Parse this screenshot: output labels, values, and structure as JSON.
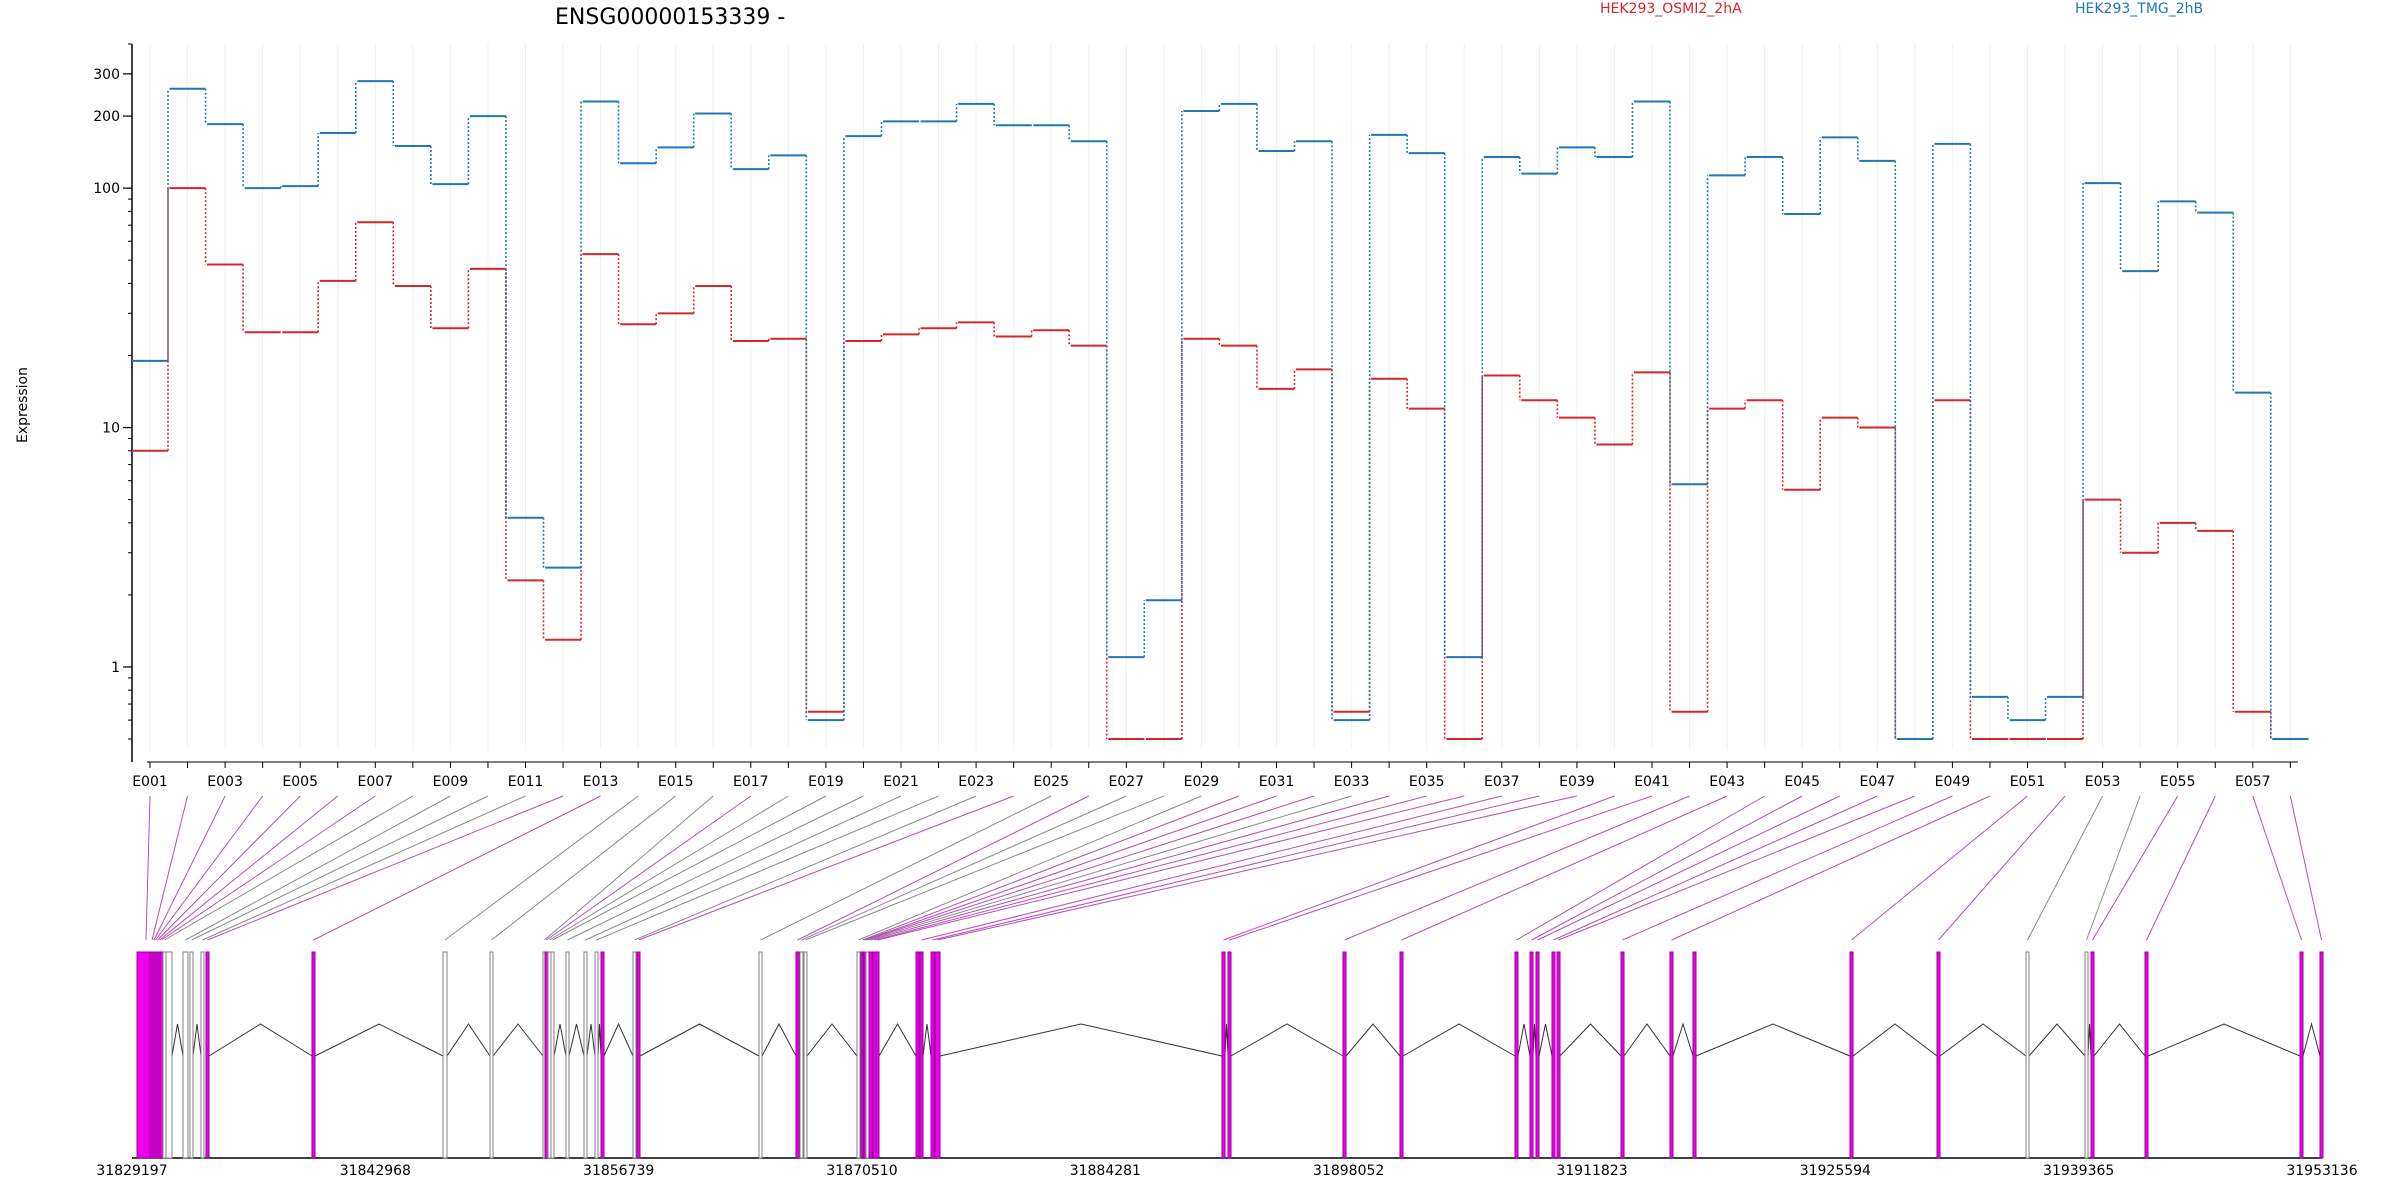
{
  "chart_data": {
    "type": "line",
    "title": "ENSG00000153339 -",
    "ylabel": "Expression",
    "yscale": "log",
    "ylim": [
      0.45,
      400
    ],
    "yticks": [
      1,
      10,
      100,
      200,
      300
    ],
    "categories": [
      "E001",
      "E002",
      "E003",
      "E004",
      "E005",
      "E006",
      "E007",
      "E008",
      "E009",
      "E010",
      "E011",
      "E012",
      "E013",
      "E014",
      "E015",
      "E016",
      "E017",
      "E018",
      "E019",
      "E020",
      "E021",
      "E022",
      "E023",
      "E024",
      "E025",
      "E026",
      "E027",
      "E028",
      "E029",
      "E030",
      "E031",
      "E032",
      "E033",
      "E034",
      "E035",
      "E036",
      "E037",
      "E038",
      "E039",
      "E040",
      "E041",
      "E042",
      "E043",
      "E044",
      "E045",
      "E046",
      "E047",
      "E048",
      "E049",
      "E050",
      "E051",
      "E052",
      "E053",
      "E054",
      "E055",
      "E056",
      "E057",
      "E058"
    ],
    "category_labels": [
      "E001",
      "E003",
      "E005",
      "E007",
      "E009",
      "E011",
      "E013",
      "E015",
      "E017",
      "E019",
      "E021",
      "E023",
      "E025",
      "E027",
      "E029",
      "E031",
      "E033",
      "E035",
      "E037",
      "E039",
      "E041",
      "E043",
      "E045",
      "E047",
      "E049",
      "E051",
      "E053",
      "E055",
      "E057"
    ],
    "series": [
      {
        "name": "HEK293_OSMI2_2hA",
        "color": "#d62728",
        "values": [
          8,
          100,
          48,
          25,
          25,
          41,
          72,
          39,
          26,
          46,
          2.3,
          1.3,
          53,
          27,
          30,
          39,
          23,
          23.5,
          0.65,
          23,
          24.5,
          26,
          27.5,
          24,
          25.5,
          22,
          0.5,
          0.5,
          23.5,
          22,
          14.5,
          17.5,
          0.65,
          16,
          12,
          0.5,
          16.5,
          13,
          11,
          8.5,
          17,
          0.65,
          12,
          13,
          5.5,
          11,
          10,
          0.5,
          13,
          0.5,
          0.5,
          0.5,
          5,
          3,
          4,
          3.7,
          0.65,
          0.5
        ]
      },
      {
        "name": "HEK293_TMG_2hB",
        "color": "#1f77b4",
        "values": [
          19,
          260,
          185,
          100,
          102,
          170,
          280,
          150,
          104,
          200,
          4.2,
          2.6,
          230,
          127,
          148,
          205,
          120,
          137,
          0.6,
          165,
          190,
          190,
          225,
          183,
          183,
          157,
          1.1,
          1.9,
          210,
          225,
          143,
          157,
          0.6,
          167,
          140,
          1.1,
          135,
          115,
          148,
          135,
          230,
          5.8,
          113,
          135,
          78,
          163,
          130,
          0.5,
          153,
          0.75,
          0.6,
          0.75,
          105,
          45,
          88,
          79,
          14,
          0.5
        ]
      }
    ],
    "gene_model": {
      "axis_ticks": [
        "31829197",
        "31842968",
        "31856739",
        "31870510",
        "31884281",
        "31898052",
        "31911823",
        "31925594",
        "31939365",
        "31953136"
      ],
      "range": [
        31829197,
        31953136
      ],
      "highlight_color": "#ee00ee",
      "exon_color": "#808080"
    }
  }
}
